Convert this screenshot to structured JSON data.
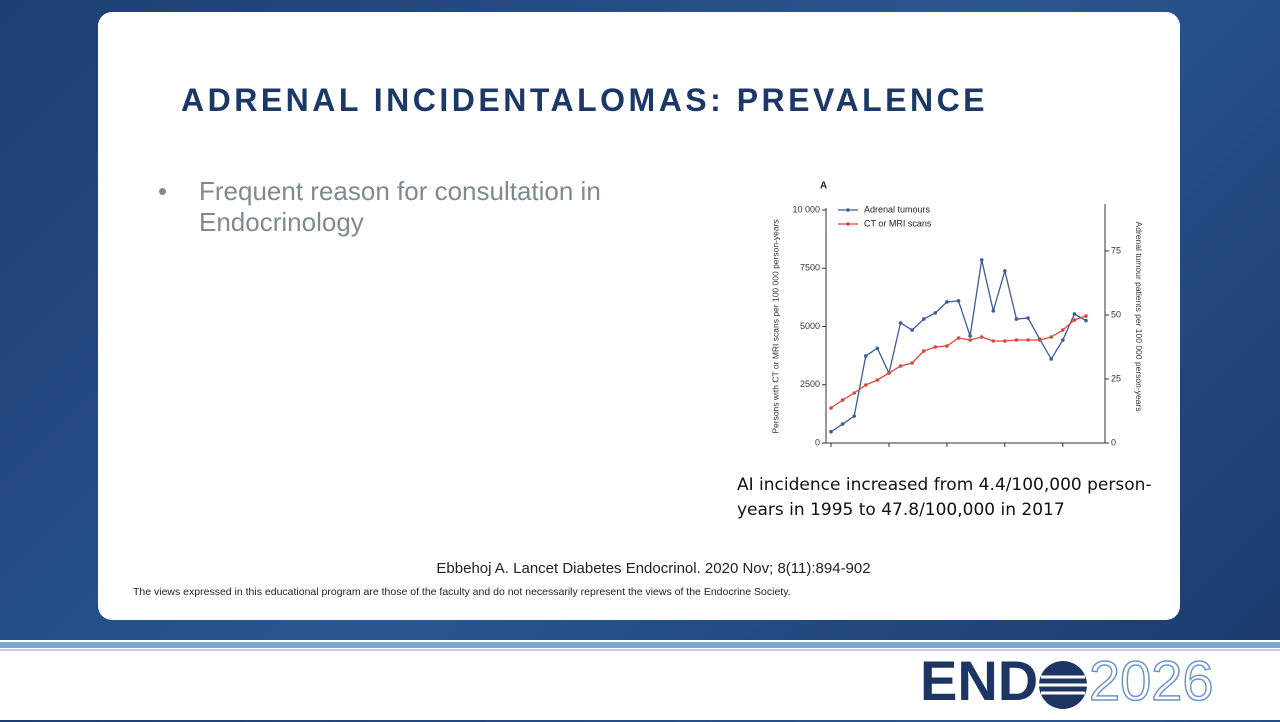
{
  "title": "ADRENAL INCIDENTALOMAS: PREVALENCE",
  "bullets": [
    "Frequent reason for consultation in Endocrinology"
  ],
  "caption": "AI incidence increased from 4.4/100,000 person-years in 1995 to 47.8/100,000 in 2017",
  "citation": "Ebbehoj A. Lancet Diabetes Endocrinol. 2020 Nov; 8(11):894-902",
  "disclaimer": "The views expressed in this educational program are those of the faculty and do not necessarily represent the views of the Endocrine Society.",
  "logo": {
    "word": "END",
    "year": "2026"
  },
  "chart_data": {
    "type": "line",
    "panel_label": "A",
    "y_label": "Persons with CT or MRI scans per 100 000 person-years",
    "y2_label": "Adrenal tumour patients per 100 000 person-years",
    "categories": [
      null,
      null,
      null,
      null,
      null,
      null,
      null,
      null,
      null,
      null,
      null,
      null,
      null,
      null,
      null,
      null,
      null,
      null,
      null,
      null,
      null,
      null,
      null
    ],
    "ylim": [
      0,
      10000
    ],
    "yticks": [
      0,
      2500,
      5000,
      7500,
      {
        "value": 10000,
        "label": "10 000"
      }
    ],
    "y2lim": [
      0,
      91
    ],
    "y2ticks": [
      0,
      25,
      50,
      75
    ],
    "legend": "upper left",
    "series": [
      {
        "name": "Adrenal tumours",
        "color": "#3d5c9c",
        "axis": "y2",
        "values": [
          4.4,
          7.4,
          10.5,
          34,
          37,
          27.3,
          46.9,
          44.1,
          48.4,
          50.8,
          55.1,
          55.5,
          41.8,
          71.5,
          51.6,
          67.2,
          48.4,
          48.8,
          40.6,
          32.8,
          40.2,
          50.4,
          47.8
        ]
      },
      {
        "name": "CT or MRI scans",
        "color": "#d9473f",
        "values": [
          1502,
          1845,
          2146,
          2489,
          2704,
          3004,
          3305,
          3433,
          3948,
          4120,
          4163,
          4506,
          4420,
          4549,
          4378,
          4378,
          4420,
          4420,
          4420,
          4549,
          4850,
          5279,
          5451
        ]
      }
    ]
  }
}
